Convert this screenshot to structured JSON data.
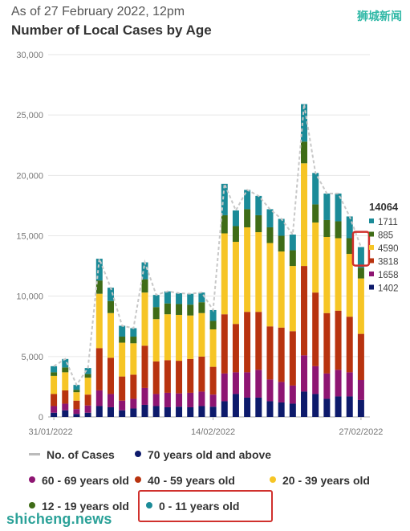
{
  "header": {
    "subtitle": "As of 27 February 2022, 12pm",
    "title": "Number of Local Cases by Age",
    "watermark_top": "狮城新闻",
    "watermark_bottom": "shicheng.news"
  },
  "legend": {
    "cases": "No. of Cases",
    "age70": "70 years old and above",
    "age60": "60 - 69 years old",
    "age40": "40 - 59 years old",
    "age20": "20 - 39 years old",
    "age12": "12 - 19 years old",
    "age0": "0 - 11 years old"
  },
  "colors": {
    "age70": "#0d1a6b",
    "age60": "#8e1572",
    "age40": "#b8330f",
    "age20": "#f6c525",
    "age12": "#3f6c17",
    "age0": "#1b8b98",
    "total_line": "#c8c8c8",
    "highlight": "#d0312d"
  },
  "chart_data": {
    "type": "bar",
    "stacked": true,
    "title": "Number of Local Cases by Age",
    "ylim": [
      0,
      30000
    ],
    "y_ticks": [
      "0",
      "5,000",
      "10,000",
      "15,000",
      "20,000",
      "25,000",
      "30,000"
    ],
    "x_tick_labels": [
      "31/01/2022",
      "14/02/2022",
      "27/02/2022"
    ],
    "categories": [
      "31/01/2022",
      "01/02/2022",
      "02/02/2022",
      "03/02/2022",
      "04/02/2022",
      "05/02/2022",
      "06/02/2022",
      "07/02/2022",
      "08/02/2022",
      "09/02/2022",
      "10/02/2022",
      "11/02/2022",
      "12/02/2022",
      "13/02/2022",
      "14/02/2022",
      "15/02/2022",
      "16/02/2022",
      "17/02/2022",
      "18/02/2022",
      "19/02/2022",
      "20/02/2022",
      "21/02/2022",
      "22/02/2022",
      "23/02/2022",
      "24/02/2022",
      "25/02/2022",
      "26/02/2022",
      "27/02/2022"
    ],
    "series": [
      {
        "name": "70 years old and above",
        "values": [
          350,
          550,
          250,
          350,
          900,
          800,
          550,
          700,
          1000,
          900,
          800,
          850,
          800,
          900,
          850,
          1300,
          1900,
          1600,
          1600,
          1300,
          1200,
          1100,
          2100,
          1900,
          1500,
          1700,
          1700,
          1402
        ]
      },
      {
        "name": "60 - 69 years old",
        "values": [
          550,
          550,
          400,
          600,
          1300,
          1100,
          800,
          800,
          1400,
          1000,
          1200,
          1100,
          1200,
          1200,
          1000,
          2300,
          1800,
          2100,
          2300,
          1800,
          1700,
          1500,
          3000,
          2300,
          2100,
          2200,
          2000,
          1658
        ]
      },
      {
        "name": "40 - 59 years old",
        "values": [
          1000,
          1100,
          700,
          900,
          3500,
          3000,
          2000,
          2000,
          3500,
          2700,
          2700,
          2700,
          2800,
          2900,
          2300,
          4900,
          4000,
          5000,
          4800,
          4400,
          4500,
          4500,
          7400,
          6100,
          5000,
          4900,
          4600,
          3818
        ]
      },
      {
        "name": "20 - 39 years old",
        "values": [
          1500,
          1500,
          700,
          1400,
          4500,
          3700,
          2800,
          2600,
          4400,
          3500,
          3800,
          3800,
          3600,
          3600,
          3100,
          6700,
          6800,
          7000,
          6600,
          6900,
          6300,
          5400,
          8500,
          5800,
          6300,
          6000,
          5200,
          4590
        ]
      },
      {
        "name": "12 - 19 years old",
        "values": [
          300,
          400,
          200,
          300,
          1100,
          1000,
          500,
          550,
          1100,
          1000,
          900,
          900,
          900,
          900,
          700,
          1500,
          1300,
          1500,
          1400,
          1300,
          1300,
          1300,
          1800,
          1500,
          1400,
          1400,
          1300,
          885
        ]
      },
      {
        "name": "0 - 11 years old",
        "values": [
          500,
          700,
          400,
          500,
          1800,
          1100,
          900,
          700,
          1400,
          1000,
          1000,
          900,
          900,
          800,
          900,
          2600,
          1300,
          1600,
          1600,
          1500,
          1400,
          1300,
          3100,
          2600,
          2200,
          2300,
          1800,
          1711
        ]
      }
    ],
    "total_line": {
      "name": "No. of Cases"
    },
    "last_bar_labels": {
      "total": "14064",
      "values": [
        "1711",
        "885",
        "4590",
        "3818",
        "1658",
        "1402"
      ]
    }
  }
}
